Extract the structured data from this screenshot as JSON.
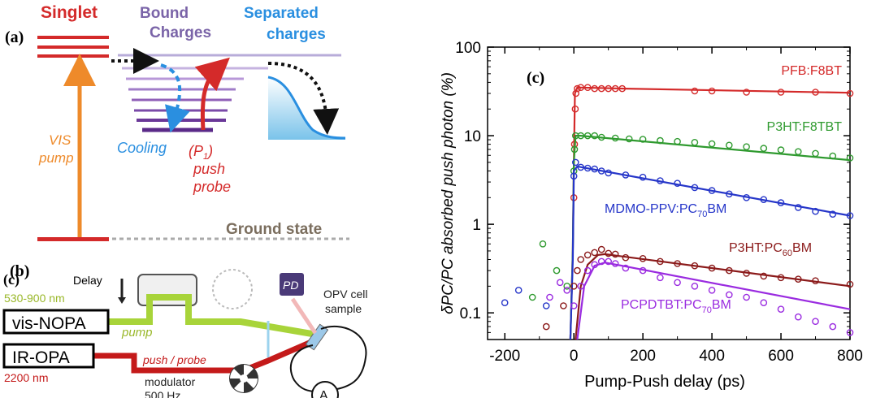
{
  "panel_a": {
    "label": "(a)",
    "singlet": "Singlet",
    "bound_line1": "Bound",
    "bound_line2": "Charges",
    "separated_line1": "Separated",
    "separated_line2": "charges",
    "vis_line1": "VIS",
    "vis_line2": "pump",
    "cooling": "Cooling",
    "push_p": "(P",
    "push_sub": "1",
    "push_p_close": ")",
    "push_word": "push",
    "probe_word": "probe",
    "ground": "Ground state"
  },
  "panel_b": {
    "label": "(b)",
    "label_overlap": "(c)",
    "delay": "Delay",
    "range_vis": "530-900 nm",
    "vis_nopa": "vis-NOPA",
    "pump": "pump",
    "ir_opa": "IR-OPA",
    "push_probe": "push / probe",
    "range_ir": "2200 nm",
    "modulator": "modulator",
    "freq": "500 Hz",
    "pd": "PD",
    "opv_line1": "OPV cell",
    "opv_line2": "sample",
    "ammeter": "A"
  },
  "chart_data": {
    "type": "scatter",
    "panel_label": "(c)",
    "xlabel": "Pump-Push delay (ps)",
    "ylabel": "δPC/PC absorbed push photon (%)",
    "xlim": [
      -250,
      800
    ],
    "ylim": [
      0.05,
      100
    ],
    "yscale": "log",
    "xticks": [
      -200,
      0,
      200,
      400,
      600,
      800
    ],
    "yticks": [
      0.1,
      1,
      10,
      100
    ],
    "ytick_labels": [
      "0.1",
      "1",
      "10",
      "100"
    ],
    "grid": false,
    "series": [
      {
        "name": "PFB:F8BT",
        "color": "#d42a2a",
        "points": [
          [
            0,
            2
          ],
          [
            2,
            8
          ],
          [
            4,
            20
          ],
          [
            6,
            30
          ],
          [
            10,
            34
          ],
          [
            20,
            35
          ],
          [
            40,
            35
          ],
          [
            60,
            34
          ],
          [
            80,
            34
          ],
          [
            100,
            34
          ],
          [
            120,
            34
          ],
          [
            140,
            34
          ],
          [
            350,
            32
          ],
          [
            400,
            32
          ],
          [
            500,
            31
          ],
          [
            600,
            31
          ],
          [
            700,
            31
          ],
          [
            800,
            30
          ]
        ],
        "fit": [
          [
            -10,
            0.05
          ],
          [
            -3,
            0.5
          ],
          [
            0,
            5
          ],
          [
            3,
            30
          ],
          [
            10,
            35
          ],
          [
            150,
            34
          ],
          [
            800,
            30.5
          ]
        ]
      },
      {
        "name": "P3HT:F8TBT",
        "color": "#2f9a2f",
        "points": [
          [
            -120,
            0.15
          ],
          [
            -90,
            0.6
          ],
          [
            -50,
            0.3
          ],
          [
            -20,
            0.2
          ],
          [
            0,
            4
          ],
          [
            2,
            7
          ],
          [
            5,
            10
          ],
          [
            20,
            10
          ],
          [
            40,
            10
          ],
          [
            60,
            10
          ],
          [
            80,
            9.6
          ],
          [
            120,
            9.4
          ],
          [
            160,
            9.2
          ],
          [
            200,
            9.1
          ],
          [
            250,
            8.8
          ],
          [
            300,
            8.6
          ],
          [
            350,
            8.4
          ],
          [
            400,
            8.1
          ],
          [
            450,
            7.8
          ],
          [
            500,
            7.5
          ],
          [
            550,
            7.2
          ],
          [
            600,
            6.9
          ],
          [
            650,
            6.6
          ],
          [
            700,
            6.3
          ],
          [
            750,
            5.9
          ],
          [
            800,
            5.6
          ]
        ],
        "fit": [
          [
            -10,
            0.05
          ],
          [
            -3,
            0.5
          ],
          [
            0,
            5
          ],
          [
            5,
            10
          ],
          [
            20,
            10
          ],
          [
            800,
            5.3
          ]
        ]
      },
      {
        "name": "MDMO-PPV:PC70BM",
        "name_main": "MDMO-PPV:PC",
        "name_sub": "70",
        "name_tail": "BM",
        "color": "#2636c9",
        "points": [
          [
            -200,
            0.13
          ],
          [
            -160,
            0.18
          ],
          [
            -80,
            0.12
          ],
          [
            0,
            3.5
          ],
          [
            5,
            5
          ],
          [
            20,
            4.4
          ],
          [
            40,
            4.3
          ],
          [
            60,
            4.2
          ],
          [
            80,
            4.0
          ],
          [
            100,
            3.8
          ],
          [
            150,
            3.6
          ],
          [
            200,
            3.4
          ],
          [
            250,
            3.1
          ],
          [
            300,
            2.9
          ],
          [
            350,
            2.6
          ],
          [
            400,
            2.4
          ],
          [
            450,
            2.2
          ],
          [
            500,
            2.0
          ],
          [
            550,
            1.9
          ],
          [
            600,
            1.75
          ],
          [
            650,
            1.55
          ],
          [
            700,
            1.4
          ],
          [
            750,
            1.3
          ],
          [
            800,
            1.25
          ]
        ],
        "fit": [
          [
            -10,
            0.05
          ],
          [
            -3,
            0.4
          ],
          [
            0,
            4
          ],
          [
            10,
            4.5
          ],
          [
            800,
            1.25
          ]
        ]
      },
      {
        "name": "P3HT:PC60BM",
        "name_main": "P3HT:PC",
        "name_sub": "60",
        "name_tail": "BM",
        "color": "#8b1a1a",
        "points": [
          [
            -80,
            0.07
          ],
          [
            -30,
            0.12
          ],
          [
            0,
            0.2
          ],
          [
            10,
            0.3
          ],
          [
            20,
            0.4
          ],
          [
            40,
            0.45
          ],
          [
            60,
            0.48
          ],
          [
            80,
            0.52
          ],
          [
            100,
            0.47
          ],
          [
            120,
            0.46
          ],
          [
            150,
            0.42
          ],
          [
            200,
            0.41
          ],
          [
            250,
            0.38
          ],
          [
            300,
            0.36
          ],
          [
            350,
            0.34
          ],
          [
            400,
            0.32
          ],
          [
            450,
            0.3
          ],
          [
            500,
            0.28
          ],
          [
            550,
            0.26
          ],
          [
            600,
            0.25
          ],
          [
            650,
            0.24
          ],
          [
            700,
            0.23
          ],
          [
            800,
            0.21
          ]
        ],
        "fit": [
          [
            5,
            0.05
          ],
          [
            20,
            0.2
          ],
          [
            40,
            0.35
          ],
          [
            70,
            0.45
          ],
          [
            90,
            0.46
          ],
          [
            800,
            0.2
          ]
        ]
      },
      {
        "name": "PCPDTBT:PC70BM",
        "name_main": "PCPDTBT:PC",
        "name_sub": "70",
        "name_tail": "BM",
        "color": "#9a2be0",
        "points": [
          [
            -70,
            0.15
          ],
          [
            -40,
            0.22
          ],
          [
            -20,
            0.18
          ],
          [
            0,
            0.12
          ],
          [
            20,
            0.2
          ],
          [
            40,
            0.3
          ],
          [
            60,
            0.35
          ],
          [
            80,
            0.38
          ],
          [
            100,
            0.38
          ],
          [
            120,
            0.36
          ],
          [
            150,
            0.32
          ],
          [
            200,
            0.3
          ],
          [
            250,
            0.25
          ],
          [
            300,
            0.22
          ],
          [
            350,
            0.2
          ],
          [
            400,
            0.18
          ],
          [
            450,
            0.16
          ],
          [
            500,
            0.15
          ],
          [
            550,
            0.13
          ],
          [
            600,
            0.11
          ],
          [
            650,
            0.09
          ],
          [
            700,
            0.08
          ],
          [
            750,
            0.07
          ],
          [
            800,
            0.06
          ]
        ],
        "fit": [
          [
            10,
            0.05
          ],
          [
            30,
            0.2
          ],
          [
            60,
            0.34
          ],
          [
            90,
            0.37
          ],
          [
            800,
            0.11
          ]
        ]
      }
    ]
  }
}
